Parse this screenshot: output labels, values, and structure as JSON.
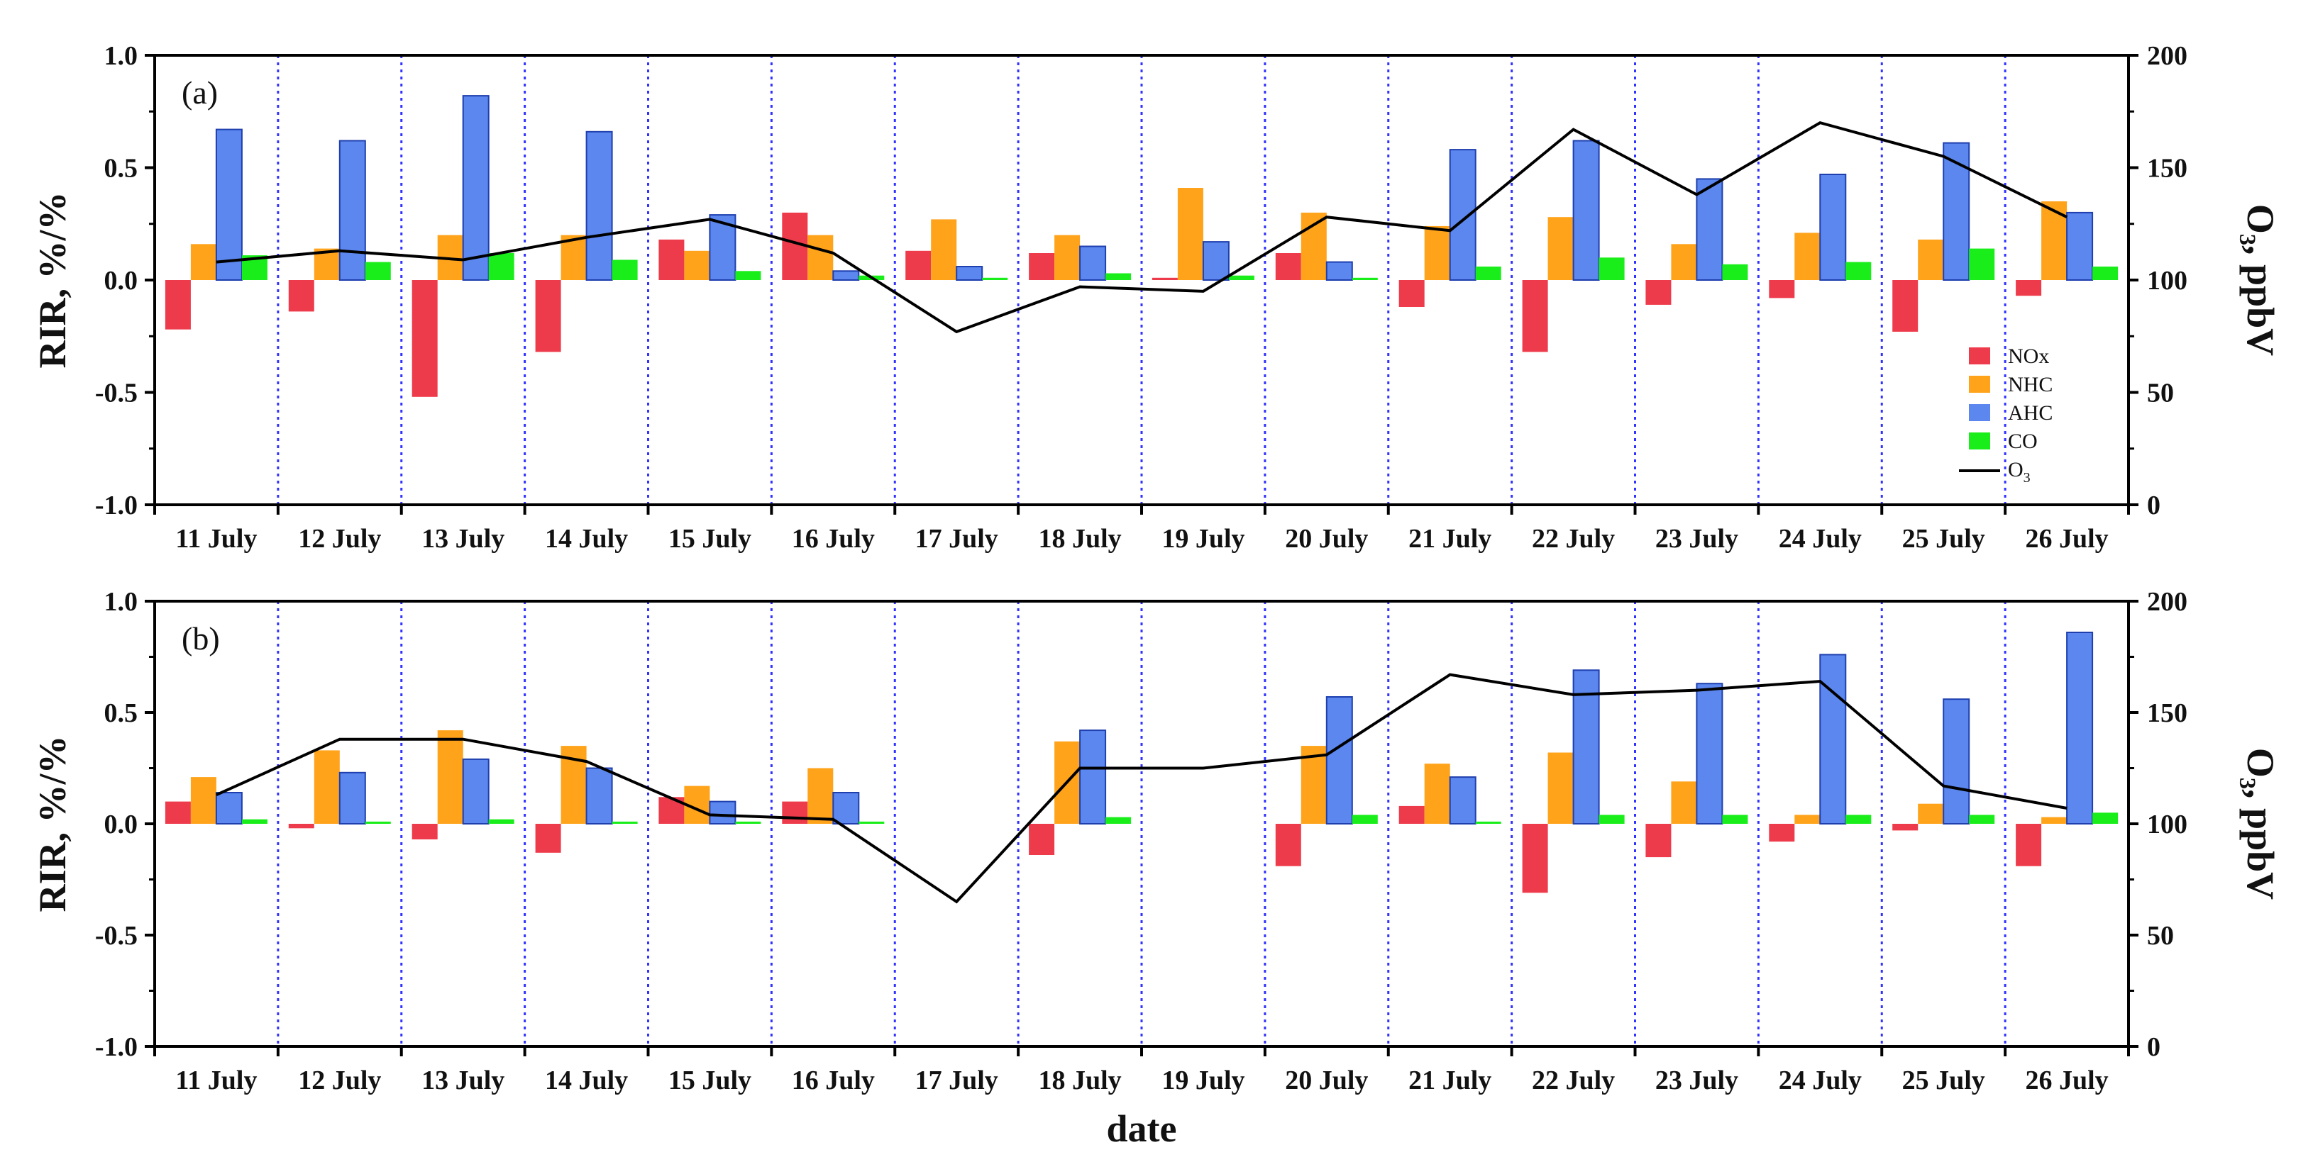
{
  "chart_data": [
    {
      "type": "bar",
      "panel_label": "(a)",
      "categories": [
        "11 July",
        "12 July",
        "13 July",
        "14 July",
        "15 July",
        "16 July",
        "17 July",
        "18 July",
        "19 July",
        "20 July",
        "21 July",
        "22 July",
        "23 July",
        "24 July",
        "25 July",
        "26 July"
      ],
      "ylabel": "RIR, %/%",
      "y2label": "O₃, ppbV",
      "ylim": [
        -1.0,
        1.0
      ],
      "y2lim": [
        0,
        200
      ],
      "yticks": [
        "-1.0",
        "-0.5",
        "0.0",
        "0.5",
        "1.0"
      ],
      "y2ticks": [
        "0",
        "50",
        "100",
        "150",
        "200"
      ],
      "xlabel": "",
      "legend_position": "bottom-right",
      "series": [
        {
          "name": "NOx",
          "color": "#ee3b4b",
          "values": [
            -0.22,
            -0.14,
            -0.52,
            -0.32,
            0.18,
            0.3,
            0.13,
            0.12,
            0.01,
            0.12,
            -0.12,
            -0.32,
            -0.11,
            -0.08,
            -0.23,
            -0.07
          ]
        },
        {
          "name": "NHC",
          "color": "#ffa31a",
          "values": [
            0.16,
            0.14,
            0.2,
            0.2,
            0.13,
            0.2,
            0.27,
            0.2,
            0.41,
            0.3,
            0.24,
            0.28,
            0.16,
            0.21,
            0.18,
            0.35
          ]
        },
        {
          "name": "AHC",
          "color": "#5b87ef",
          "values": [
            0.67,
            0.62,
            0.82,
            0.66,
            0.29,
            0.04,
            0.06,
            0.15,
            0.17,
            0.08,
            0.58,
            0.62,
            0.45,
            0.47,
            0.61,
            0.3
          ]
        },
        {
          "name": "CO",
          "color": "#1aee1a",
          "values": [
            0.11,
            0.08,
            0.12,
            0.09,
            0.04,
            0.02,
            0.01,
            0.03,
            0.02,
            0.01,
            0.06,
            0.1,
            0.07,
            0.08,
            0.14,
            0.06
          ]
        }
      ],
      "line_series": {
        "name": "O3",
        "legend_text": "O",
        "legend_sub": "3",
        "color": "#000000",
        "values": [
          108,
          113,
          109,
          119,
          127,
          112,
          77,
          97,
          95,
          128,
          122,
          167,
          138,
          170,
          155,
          128
        ]
      }
    },
    {
      "type": "bar",
      "panel_label": "(b)",
      "categories": [
        "11 July",
        "12 July",
        "13 July",
        "14 July",
        "15 July",
        "16 July",
        "17 July",
        "18 July",
        "19 July",
        "20 July",
        "21 July",
        "22 July",
        "23 July",
        "24 July",
        "25 July",
        "26 July"
      ],
      "ylabel": "RIR, %/%",
      "y2label": "O₃, ppbV",
      "ylim": [
        -1.0,
        1.0
      ],
      "y2lim": [
        0,
        200
      ],
      "yticks": [
        "-1.0",
        "-0.5",
        "0.0",
        "0.5",
        "1.0"
      ],
      "y2ticks": [
        "0",
        "50",
        "100",
        "150",
        "200"
      ],
      "xlabel": "date",
      "series": [
        {
          "name": "NOx",
          "color": "#ee3b4b",
          "values": [
            0.1,
            -0.02,
            -0.07,
            -0.13,
            0.12,
            0.1,
            null,
            -0.14,
            null,
            -0.19,
            0.08,
            -0.31,
            -0.15,
            -0.08,
            -0.03,
            -0.19
          ]
        },
        {
          "name": "NHC",
          "color": "#ffa31a",
          "values": [
            0.21,
            0.33,
            0.42,
            0.35,
            0.17,
            0.25,
            null,
            0.37,
            null,
            0.35,
            0.27,
            0.32,
            0.19,
            0.04,
            0.09,
            0.03
          ]
        },
        {
          "name": "AHC",
          "color": "#5b87ef",
          "values": [
            0.14,
            0.23,
            0.29,
            0.25,
            0.1,
            0.14,
            null,
            0.42,
            null,
            0.57,
            0.21,
            0.69,
            0.63,
            0.76,
            0.56,
            0.86
          ]
        },
        {
          "name": "CO",
          "color": "#1aee1a",
          "values": [
            0.02,
            0.01,
            0.02,
            0.01,
            0.01,
            0.01,
            null,
            0.03,
            null,
            0.04,
            0.01,
            0.04,
            0.04,
            0.04,
            0.04,
            0.05
          ]
        }
      ],
      "line_series": {
        "name": "O3",
        "color": "#000000",
        "values": [
          113,
          138,
          138,
          128,
          104,
          102,
          65,
          125,
          125,
          131,
          167,
          158,
          160,
          164,
          117,
          107
        ]
      }
    }
  ]
}
